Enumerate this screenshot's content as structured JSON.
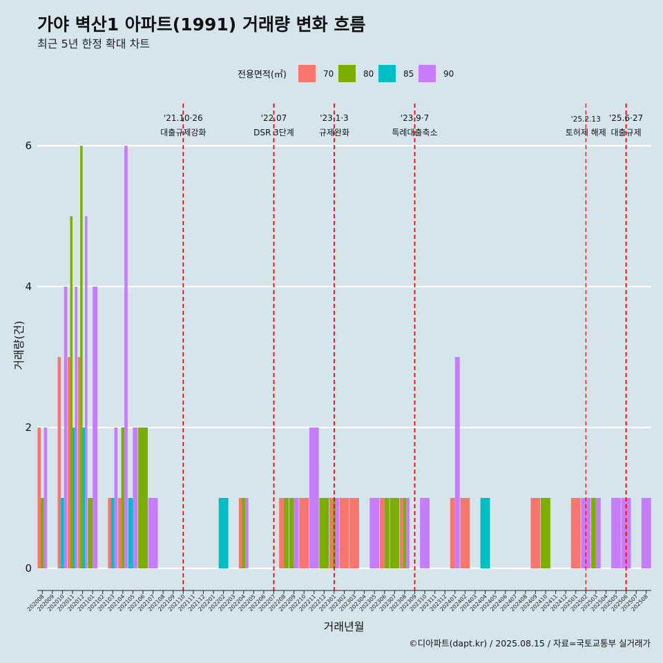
{
  "chart_data": {
    "type": "bar",
    "title": "가야 벽산1 아파트(1991) 거래량 변화 흐름",
    "subtitle": "최근 5년 한정 확대 차트",
    "xlabel": "거래년월",
    "ylabel": "거래량(건)",
    "caption": "©디아파트(dapt.kr) / 2025.08.15 / 자료=국토교통부 실거래가",
    "legend": {
      "title": "전용면적(㎡)",
      "placement": "top",
      "entries": [
        {
          "name": "70",
          "color": "#F8766D"
        },
        {
          "name": "80",
          "color": "#7CAE00"
        },
        {
          "name": "85",
          "color": "#00BFC4"
        },
        {
          "name": "90",
          "color": "#C77CFF"
        }
      ]
    },
    "ylim": [
      0,
      6.5
    ],
    "yticks": [
      0,
      2,
      4,
      6
    ],
    "grid": true,
    "categories": [
      "202008",
      "202009",
      "202010",
      "202011",
      "202012",
      "202101",
      "202102",
      "202103",
      "202104",
      "202105",
      "202106",
      "202107",
      "202108",
      "202109",
      "202110",
      "202111",
      "202112",
      "202201",
      "202202",
      "202203",
      "202204",
      "202205",
      "202206",
      "202207",
      "202208",
      "202209",
      "202210",
      "202211",
      "202212",
      "202301",
      "202302",
      "202303",
      "202304",
      "202305",
      "202306",
      "202307",
      "202308",
      "202309",
      "202310",
      "202311",
      "202312",
      "202401",
      "202402",
      "202403",
      "202404",
      "202405",
      "202406",
      "202407",
      "202408",
      "202409",
      "202410",
      "202411",
      "202412",
      "202501",
      "202502",
      "202503",
      "202504",
      "202505",
      "202506",
      "202507",
      "202508"
    ],
    "points": [
      {
        "month": "202008",
        "area": "70",
        "count": 2
      },
      {
        "month": "202008",
        "area": "80",
        "count": 1
      },
      {
        "month": "202008",
        "area": "90",
        "count": 2
      },
      {
        "month": "202010",
        "area": "70",
        "count": 3
      },
      {
        "month": "202010",
        "area": "85",
        "count": 1
      },
      {
        "month": "202010",
        "area": "90",
        "count": 4
      },
      {
        "month": "202011",
        "area": "70",
        "count": 3
      },
      {
        "month": "202011",
        "area": "80",
        "count": 5
      },
      {
        "month": "202011",
        "area": "85",
        "count": 2
      },
      {
        "month": "202011",
        "area": "90",
        "count": 4
      },
      {
        "month": "202012",
        "area": "70",
        "count": 3
      },
      {
        "month": "202012",
        "area": "80",
        "count": 6
      },
      {
        "month": "202012",
        "area": "85",
        "count": 2
      },
      {
        "month": "202012",
        "area": "90",
        "count": 5
      },
      {
        "month": "202101",
        "area": "80",
        "count": 1
      },
      {
        "month": "202101",
        "area": "90",
        "count": 4
      },
      {
        "month": "202103",
        "area": "70",
        "count": 1
      },
      {
        "month": "202103",
        "area": "85",
        "count": 1
      },
      {
        "month": "202103",
        "area": "90",
        "count": 2
      },
      {
        "month": "202104",
        "area": "70",
        "count": 1
      },
      {
        "month": "202104",
        "area": "80",
        "count": 2
      },
      {
        "month": "202104",
        "area": "90",
        "count": 6
      },
      {
        "month": "202105",
        "area": "85",
        "count": 1
      },
      {
        "month": "202105",
        "area": "90",
        "count": 2
      },
      {
        "month": "202106",
        "area": "80",
        "count": 2
      },
      {
        "month": "202107",
        "area": "90",
        "count": 1
      },
      {
        "month": "202202",
        "area": "85",
        "count": 1
      },
      {
        "month": "202204",
        "area": "70",
        "count": 1
      },
      {
        "month": "202204",
        "area": "80",
        "count": 1
      },
      {
        "month": "202204",
        "area": "90",
        "count": 1
      },
      {
        "month": "202208",
        "area": "70",
        "count": 1
      },
      {
        "month": "202208",
        "area": "80",
        "count": 1
      },
      {
        "month": "202209",
        "area": "80",
        "count": 1
      },
      {
        "month": "202209",
        "area": "90",
        "count": 1
      },
      {
        "month": "202210",
        "area": "70",
        "count": 1
      },
      {
        "month": "202211",
        "area": "90",
        "count": 2
      },
      {
        "month": "202212",
        "area": "80",
        "count": 1
      },
      {
        "month": "202301",
        "area": "70",
        "count": 1
      },
      {
        "month": "202301",
        "area": "80",
        "count": 1
      },
      {
        "month": "202301",
        "area": "90",
        "count": 1
      },
      {
        "month": "202302",
        "area": "70",
        "count": 1
      },
      {
        "month": "202303",
        "area": "70",
        "count": 1
      },
      {
        "month": "202305",
        "area": "90",
        "count": 1
      },
      {
        "month": "202306",
        "area": "70",
        "count": 1
      },
      {
        "month": "202306",
        "area": "80",
        "count": 1
      },
      {
        "month": "202307",
        "area": "80",
        "count": 1
      },
      {
        "month": "202308",
        "area": "70",
        "count": 1
      },
      {
        "month": "202308",
        "area": "80",
        "count": 1
      },
      {
        "month": "202308",
        "area": "90",
        "count": 1
      },
      {
        "month": "202310",
        "area": "90",
        "count": 1
      },
      {
        "month": "202401",
        "area": "70",
        "count": 1
      },
      {
        "month": "202401",
        "area": "90",
        "count": 3
      },
      {
        "month": "202402",
        "area": "70",
        "count": 1
      },
      {
        "month": "202404",
        "area": "85",
        "count": 1
      },
      {
        "month": "202409",
        "area": "70",
        "count": 1
      },
      {
        "month": "202410",
        "area": "80",
        "count": 1
      },
      {
        "month": "202501",
        "area": "70",
        "count": 1
      },
      {
        "month": "202502",
        "area": "90",
        "count": 1
      },
      {
        "month": "202503",
        "area": "80",
        "count": 1
      },
      {
        "month": "202503",
        "area": "90",
        "count": 1
      },
      {
        "month": "202505",
        "area": "90",
        "count": 1
      },
      {
        "month": "202506",
        "area": "90",
        "count": 1
      },
      {
        "month": "202508",
        "area": "90",
        "count": 1
      }
    ],
    "events": [
      {
        "month": "202110",
        "line1": "'21.10·26",
        "line2": "대출규제강화",
        "style": "major"
      },
      {
        "month": "202207",
        "line1": "'22.07",
        "line2": "DSR 3단계",
        "style": "major"
      },
      {
        "month": "202301",
        "line1": "'23.1·3",
        "line2": "규제완화",
        "style": "major"
      },
      {
        "month": "202309",
        "line1": "'23.9·7",
        "line2": "특례대출축소",
        "style": "major"
      },
      {
        "month": "202502",
        "line1": "'25.2.13",
        "line2": "토허제 해제",
        "style": "minor"
      },
      {
        "month": "202506",
        "line1": "'25.6·27",
        "line2": "대출규제",
        "style": "major"
      }
    ]
  }
}
